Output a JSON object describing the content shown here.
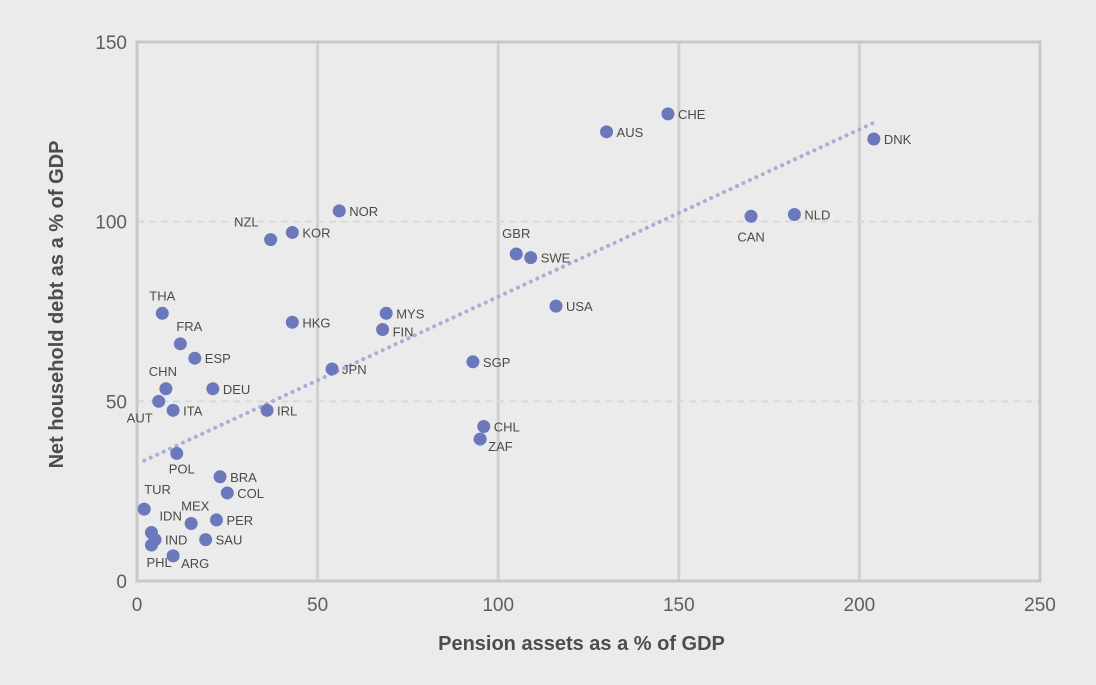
{
  "chart_data": {
    "type": "scatter",
    "title": "",
    "xlabel": "Pension assets as a % of GDP",
    "ylabel": "Net household debt as a % of GDP",
    "xlim": [
      0,
      250
    ],
    "ylim": [
      0,
      150
    ],
    "xticks": [
      "0",
      "50",
      "100",
      "150",
      "200",
      "250"
    ],
    "yticks": [
      "0",
      "50",
      "100",
      "150"
    ],
    "grid": true,
    "legend": "none",
    "colors": {
      "background": "#ebebeb",
      "point": "#6b78bc",
      "trendline": "#a9aed4",
      "grid_vertical": "#d0d0d0",
      "grid_horizontal": "#d9d9d9",
      "frame": "#c8c8c8"
    },
    "trendline": {
      "style": "dotted",
      "x": [
        2,
        205
      ],
      "y": [
        33.5,
        128
      ]
    },
    "points": [
      {
        "label": "DNK",
        "x": 204,
        "y": 123
      },
      {
        "label": "CHE",
        "x": 147,
        "y": 130
      },
      {
        "label": "AUS",
        "x": 130,
        "y": 125
      },
      {
        "label": "NLD",
        "x": 182,
        "y": 102
      },
      {
        "label": "CAN",
        "x": 170,
        "y": 101.5
      },
      {
        "label": "NOR",
        "x": 56,
        "y": 103
      },
      {
        "label": "KOR",
        "x": 43,
        "y": 97
      },
      {
        "label": "NZL",
        "x": 37,
        "y": 95
      },
      {
        "label": "GBR",
        "x": 105,
        "y": 91
      },
      {
        "label": "SWE",
        "x": 109,
        "y": 90
      },
      {
        "label": "USA",
        "x": 116,
        "y": 76.5
      },
      {
        "label": "MYS",
        "x": 69,
        "y": 74.5
      },
      {
        "label": "FIN",
        "x": 68,
        "y": 70
      },
      {
        "label": "HKG",
        "x": 43,
        "y": 72
      },
      {
        "label": "THA",
        "x": 7,
        "y": 74.5
      },
      {
        "label": "FRA",
        "x": 12,
        "y": 66
      },
      {
        "label": "ESP",
        "x": 16,
        "y": 62
      },
      {
        "label": "SGP",
        "x": 93,
        "y": 61
      },
      {
        "label": "JPN",
        "x": 54,
        "y": 59
      },
      {
        "label": "CHN",
        "x": 8,
        "y": 53.5
      },
      {
        "label": "DEU",
        "x": 21,
        "y": 53.5
      },
      {
        "label": "AUT",
        "x": 6,
        "y": 50
      },
      {
        "label": "ITA",
        "x": 10,
        "y": 47.5
      },
      {
        "label": "IRL",
        "x": 36,
        "y": 47.5
      },
      {
        "label": "CHL",
        "x": 96,
        "y": 43
      },
      {
        "label": "ZAF",
        "x": 95,
        "y": 39.5
      },
      {
        "label": "POL",
        "x": 11,
        "y": 35.5
      },
      {
        "label": "BRA",
        "x": 23,
        "y": 29
      },
      {
        "label": "COL",
        "x": 25,
        "y": 24.5
      },
      {
        "label": "TUR",
        "x": 2,
        "y": 20
      },
      {
        "label": "MEX",
        "x": 15,
        "y": 16
      },
      {
        "label": "PER",
        "x": 22,
        "y": 17
      },
      {
        "label": "IDN",
        "x": 4,
        "y": 13.5
      },
      {
        "label": "IND",
        "x": 5,
        "y": 11.5
      },
      {
        "label": "SAU",
        "x": 19,
        "y": 11.5
      },
      {
        "label": "PHL",
        "x": 4,
        "y": 10
      },
      {
        "label": "ARG",
        "x": 10,
        "y": 7
      }
    ]
  }
}
